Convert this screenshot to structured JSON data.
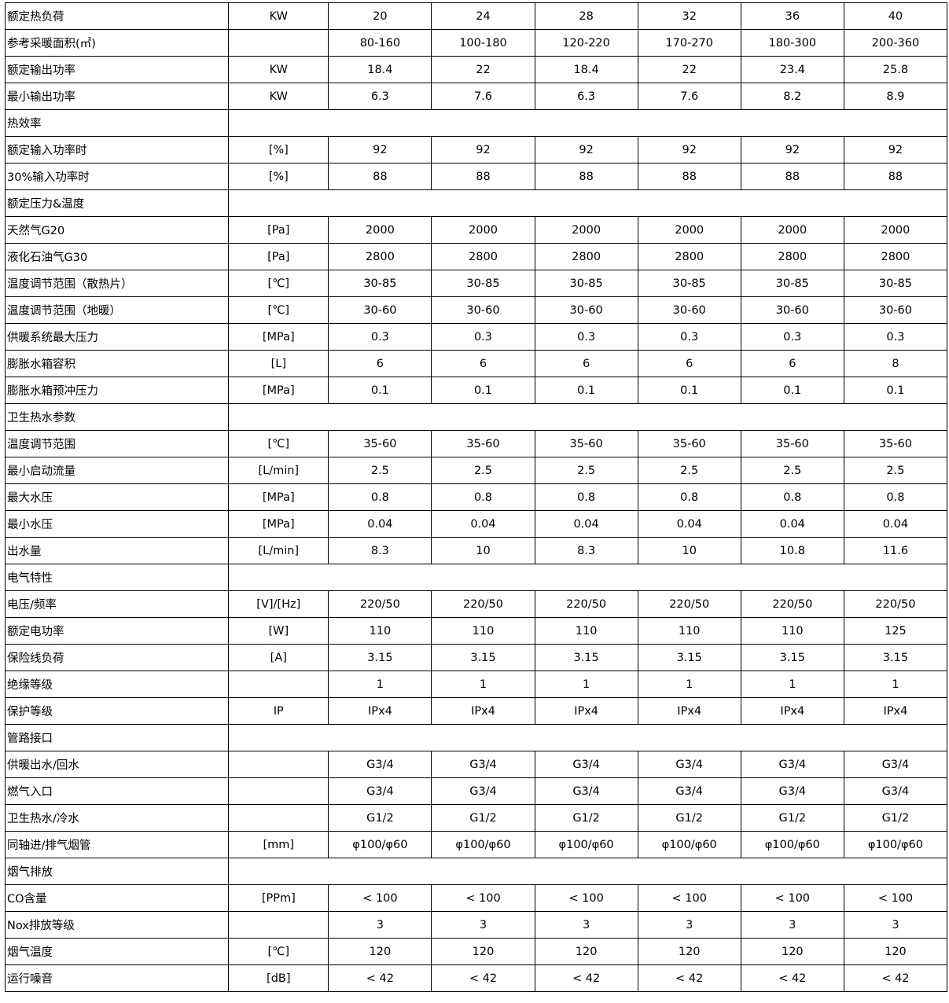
{
  "spec_table": {
    "rows": [
      {
        "label": "额定热负荷",
        "unit": "KW",
        "values": [
          "20",
          "24",
          "28",
          "32",
          "36",
          "40"
        ]
      },
      {
        "label": "参考采暖面积(㎡)",
        "unit": "",
        "values": [
          "80-160",
          "100-180",
          "120-220",
          "170-270",
          "180-300",
          "200-360"
        ]
      },
      {
        "label": "额定输出功率",
        "unit": "KW",
        "values": [
          "18.4",
          "22",
          "18.4",
          "22",
          "23.4",
          "25.8"
        ]
      },
      {
        "label": "最小输出功率",
        "unit": "KW",
        "values": [
          "6.3",
          "7.6",
          "6.3",
          "7.6",
          "8.2",
          "8.9"
        ]
      },
      {
        "label": "热效率",
        "section": true
      },
      {
        "label": "额定输入功率时",
        "unit": "[%]",
        "values": [
          "92",
          "92",
          "92",
          "92",
          "92",
          "92"
        ]
      },
      {
        "label": "30%输入功率时",
        "unit": "[%]",
        "values": [
          "88",
          "88",
          "88",
          "88",
          "88",
          "88"
        ]
      },
      {
        "label": "额定压力&温度",
        "section": true
      },
      {
        "label": "天然气G20",
        "unit": "[Pa]",
        "values": [
          "2000",
          "2000",
          "2000",
          "2000",
          "2000",
          "2000"
        ]
      },
      {
        "label": "液化石油气G30",
        "unit": "[Pa]",
        "values": [
          "2800",
          "2800",
          "2800",
          "2800",
          "2800",
          "2800"
        ]
      },
      {
        "label": "温度调节范围（散热片）",
        "unit": "[℃]",
        "values": [
          "30-85",
          "30-85",
          "30-85",
          "30-85",
          "30-85",
          "30-85"
        ]
      },
      {
        "label": "温度调节范围（地暖）",
        "unit": "[℃]",
        "values": [
          "30-60",
          "30-60",
          "30-60",
          "30-60",
          "30-60",
          "30-60"
        ]
      },
      {
        "label": "供暖系统最大压力",
        "unit": "[MPa]",
        "values": [
          "0.3",
          "0.3",
          "0.3",
          "0.3",
          "0.3",
          "0.3"
        ]
      },
      {
        "label": "膨胀水箱容积",
        "unit": "[L]",
        "values": [
          "6",
          "6",
          "6",
          "6",
          "6",
          "8"
        ]
      },
      {
        "label": "膨胀水箱预冲压力",
        "unit": "[MPa]",
        "values": [
          "0.1",
          "0.1",
          "0.1",
          "0.1",
          "0.1",
          "0.1"
        ]
      },
      {
        "label": "卫生热水参数",
        "section": true
      },
      {
        "label": "温度调节范围",
        "unit": "[℃]",
        "values": [
          "35-60",
          "35-60",
          "35-60",
          "35-60",
          "35-60",
          "35-60"
        ]
      },
      {
        "label": "最小启动流量",
        "unit": "[L/min]",
        "values": [
          "2.5",
          "2.5",
          "2.5",
          "2.5",
          "2.5",
          "2.5"
        ]
      },
      {
        "label": "最大水压",
        "unit": "[MPa]",
        "values": [
          "0.8",
          "0.8",
          "0.8",
          "0.8",
          "0.8",
          "0.8"
        ]
      },
      {
        "label": "最小水压",
        "unit": "[MPa]",
        "values": [
          "0.04",
          "0.04",
          "0.04",
          "0.04",
          "0.04",
          "0.04"
        ]
      },
      {
        "label": "出水量",
        "unit": "[L/min]",
        "values": [
          "8.3",
          "10",
          "8.3",
          "10",
          "10.8",
          "11.6"
        ]
      },
      {
        "label": "电气特性",
        "section": true
      },
      {
        "label": "电压/频率",
        "unit": "[V]/[Hz]",
        "values": [
          "220/50",
          "220/50",
          "220/50",
          "220/50",
          "220/50",
          "220/50"
        ]
      },
      {
        "label": "额定电功率",
        "unit": "[W]",
        "values": [
          "110",
          "110",
          "110",
          "110",
          "110",
          "125"
        ]
      },
      {
        "label": "保险线负荷",
        "unit": "[A]",
        "values": [
          "3.15",
          "3.15",
          "3.15",
          "3.15",
          "3.15",
          "3.15"
        ]
      },
      {
        "label": "绝缘等级",
        "unit": "",
        "values": [
          "1",
          "1",
          "1",
          "1",
          "1",
          "1"
        ]
      },
      {
        "label": "保护等级",
        "unit": "IP",
        "values": [
          "IPx4",
          "IPx4",
          "IPx4",
          "IPx4",
          "IPx4",
          "IPx4"
        ]
      },
      {
        "label": "管路接口",
        "section": true
      },
      {
        "label": "供暖出水/回水",
        "unit": "",
        "values": [
          "G3/4",
          "G3/4",
          "G3/4",
          "G3/4",
          "G3/4",
          "G3/4"
        ]
      },
      {
        "label": "燃气入口",
        "unit": "",
        "values": [
          "G3/4",
          "G3/4",
          "G3/4",
          "G3/4",
          "G3/4",
          "G3/4"
        ]
      },
      {
        "label": "卫生热水/冷水",
        "unit": "",
        "values": [
          "G1/2",
          "G1/2",
          "G1/2",
          "G1/2",
          "G1/2",
          "G1/2"
        ]
      },
      {
        "label": "同轴进/排气烟管",
        "unit": "[mm]",
        "values": [
          "φ100/φ60",
          "φ100/φ60",
          "φ100/φ60",
          "φ100/φ60",
          "φ100/φ60",
          "φ100/φ60"
        ]
      },
      {
        "label": "烟气排放",
        "section": true
      },
      {
        "label": "CO含量",
        "unit": "[PPm]",
        "values": [
          "< 100",
          "< 100",
          "< 100",
          "< 100",
          "< 100",
          "< 100"
        ]
      },
      {
        "label": "Nox排放等级",
        "unit": "",
        "values": [
          "3",
          "3",
          "3",
          "3",
          "3",
          "3"
        ]
      },
      {
        "label": "烟气温度",
        "unit": "[℃]",
        "values": [
          "120",
          "120",
          "120",
          "120",
          "120",
          "120"
        ]
      },
      {
        "label": "运行噪音",
        "unit": "[dB]",
        "values": [
          "< 42",
          "< 42",
          "< 42",
          "< 42",
          "< 42",
          "< 42"
        ]
      }
    ]
  }
}
